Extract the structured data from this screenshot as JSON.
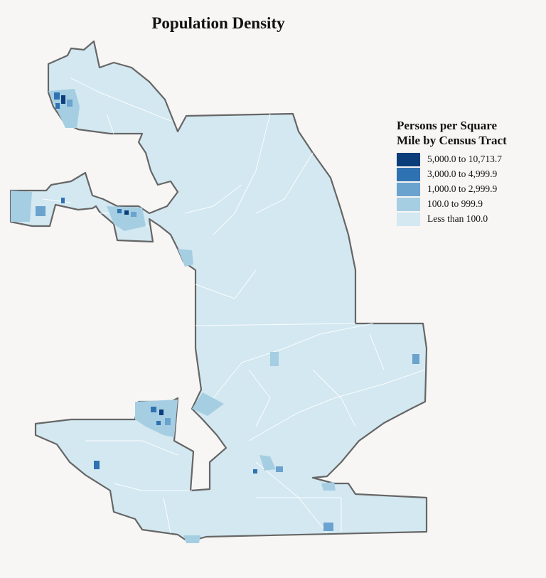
{
  "title": "Population Density",
  "legend": {
    "title_lines": [
      "Persons per Square",
      "Mile by Census Tract"
    ],
    "items": [
      {
        "label": "5,000.0 to 10,713.7",
        "color": "#0b3d7a"
      },
      {
        "label": "3,000.0 to 4,999.9",
        "color": "#2f72b1"
      },
      {
        "label": "1,000.0 to 2,999.9",
        "color": "#6ba3cf"
      },
      {
        "label": "100.0 to 999.9",
        "color": "#a6cee3"
      },
      {
        "label": "Less than 100.0",
        "color": "#d3e8f1"
      }
    ]
  }
}
